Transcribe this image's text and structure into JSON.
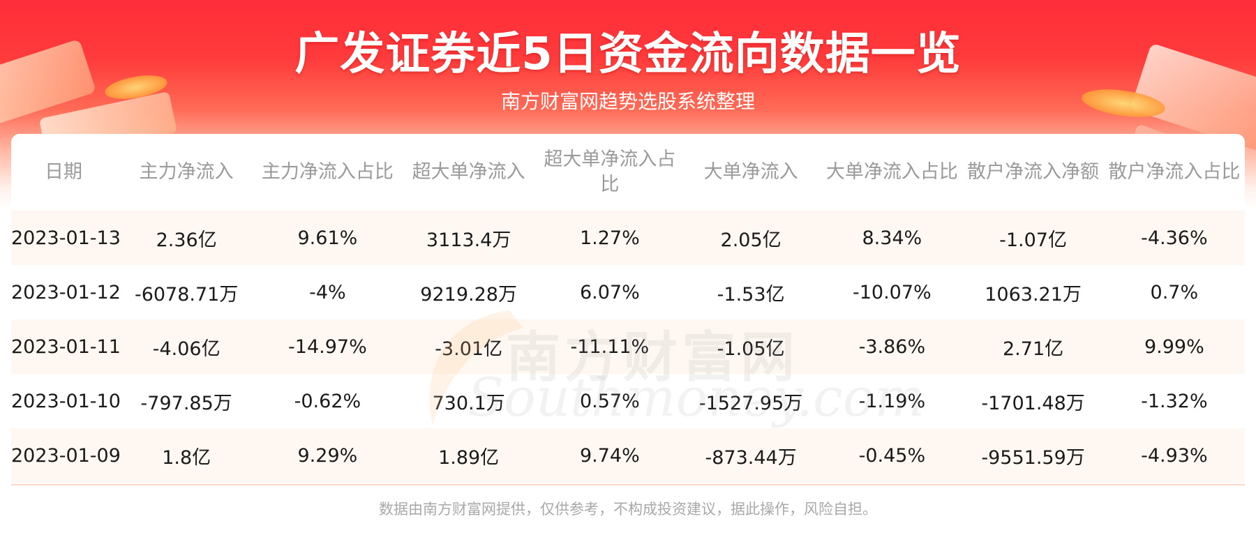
{
  "header": {
    "title": "广发证券近5日资金流向数据一览",
    "subtitle": "南方财富网趋势选股系统整理"
  },
  "watermark": {
    "cn": "南方财富网",
    "en": "Southmoney.com"
  },
  "table": {
    "columns": [
      "日期",
      "主力净流入",
      "主力净流入占比",
      "超大单净流入",
      "超大单净流入占比",
      "大单净流入",
      "大单净流入占比",
      "散户净流入净额",
      "散户净流入占比"
    ],
    "rows": [
      [
        "2023-01-13",
        "2.36亿",
        "9.61%",
        "3113.4万",
        "1.27%",
        "2.05亿",
        "8.34%",
        "-1.07亿",
        "-4.36%"
      ],
      [
        "2023-01-12",
        "-6078.71万",
        "-4%",
        "9219.28万",
        "6.07%",
        "-1.53亿",
        "-10.07%",
        "1063.21万",
        "0.7%"
      ],
      [
        "2023-01-11",
        "-4.06亿",
        "-14.97%",
        "-3.01亿",
        "-11.11%",
        "-1.05亿",
        "-3.86%",
        "2.71亿",
        "9.99%"
      ],
      [
        "2023-01-10",
        "-797.85万",
        "-0.62%",
        "730.1万",
        "0.57%",
        "-1527.95万",
        "-1.19%",
        "-1701.48万",
        "-1.32%"
      ],
      [
        "2023-01-09",
        "1.8亿",
        "9.29%",
        "1.89亿",
        "9.74%",
        "-873.44万",
        "-0.45%",
        "-9551.59万",
        "-4.93%"
      ]
    ]
  },
  "footer": {
    "disclaimer": "数据由南方财富网提供，仅供参考，不构成投资建议，据此操作，风险自担。"
  },
  "colors": {
    "banner_red": "#ff2d3a",
    "header_text": "#9a9a9a",
    "row_stripe": "#fff8f2",
    "footer_text": "#a8a8a8"
  }
}
